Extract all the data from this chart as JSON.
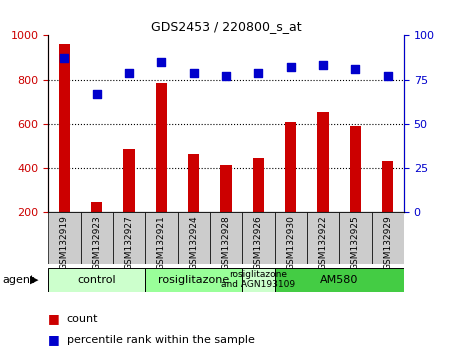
{
  "title": "GDS2453 / 220800_s_at",
  "samples": [
    "GSM132919",
    "GSM132923",
    "GSM132927",
    "GSM132921",
    "GSM132924",
    "GSM132928",
    "GSM132926",
    "GSM132930",
    "GSM132922",
    "GSM132925",
    "GSM132929"
  ],
  "counts": [
    960,
    248,
    488,
    785,
    462,
    412,
    448,
    610,
    652,
    592,
    432
  ],
  "percentiles": [
    87,
    67,
    79,
    85,
    79,
    77,
    79,
    82,
    83,
    81,
    77
  ],
  "ylim_left": [
    200,
    1000
  ],
  "ylim_right": [
    0,
    100
  ],
  "yticks_left": [
    200,
    400,
    600,
    800,
    1000
  ],
  "yticks_right": [
    0,
    25,
    50,
    75,
    100
  ],
  "bar_color": "#cc0000",
  "dot_color": "#0000cc",
  "hgrid_levels": [
    400,
    600,
    800
  ],
  "group_bounds": [
    {
      "start": 0,
      "end": 2,
      "label": "control",
      "color": "#ccffcc"
    },
    {
      "start": 3,
      "end": 5,
      "label": "rosiglitazone",
      "color": "#99ff99"
    },
    {
      "start": 6,
      "end": 6,
      "label": "rosiglitazone\nand AGN193109",
      "color": "#ccffcc"
    },
    {
      "start": 7,
      "end": 10,
      "label": "AM580",
      "color": "#44cc44"
    }
  ],
  "xtick_bg_color": "#cccccc",
  "agent_label": "agent",
  "legend_count_label": "count",
  "legend_pct_label": "percentile rank within the sample",
  "background_color": "#ffffff",
  "bar_width": 0.35,
  "dot_size": 30
}
